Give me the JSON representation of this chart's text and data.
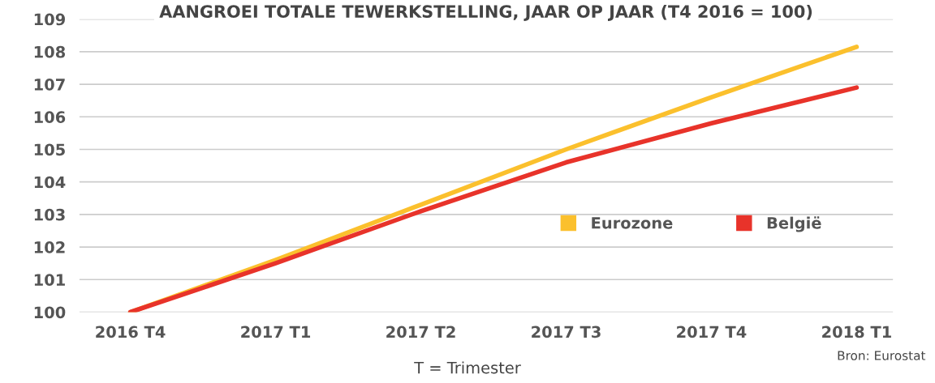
{
  "chart_data": {
    "type": "line",
    "title": "AANGROEI TOTALE TEWERKSTELLING, JAAR OP JAAR (T4 2016 = 100)",
    "categories": [
      "2016 T4",
      "2017 T1",
      "2017 T2",
      "2017 T3",
      "2017 T4",
      "2018 T1"
    ],
    "series": [
      {
        "name": "Eurozone",
        "color": "#fbc02d",
        "values": [
          100,
          101.6,
          103.3,
          105.0,
          106.6,
          108.15
        ]
      },
      {
        "name": "België",
        "color": "#e8332a",
        "values": [
          100,
          101.5,
          103.1,
          104.6,
          105.8,
          106.9
        ]
      }
    ],
    "ylim": [
      100,
      109
    ],
    "yticks": [
      100,
      101,
      102,
      103,
      104,
      105,
      106,
      107,
      108,
      109
    ],
    "grid": "y",
    "legend": "right",
    "marker": "none",
    "line_style": "solid",
    "annotations": [
      "T = Trimester",
      "Bron: Eurostat"
    ]
  }
}
